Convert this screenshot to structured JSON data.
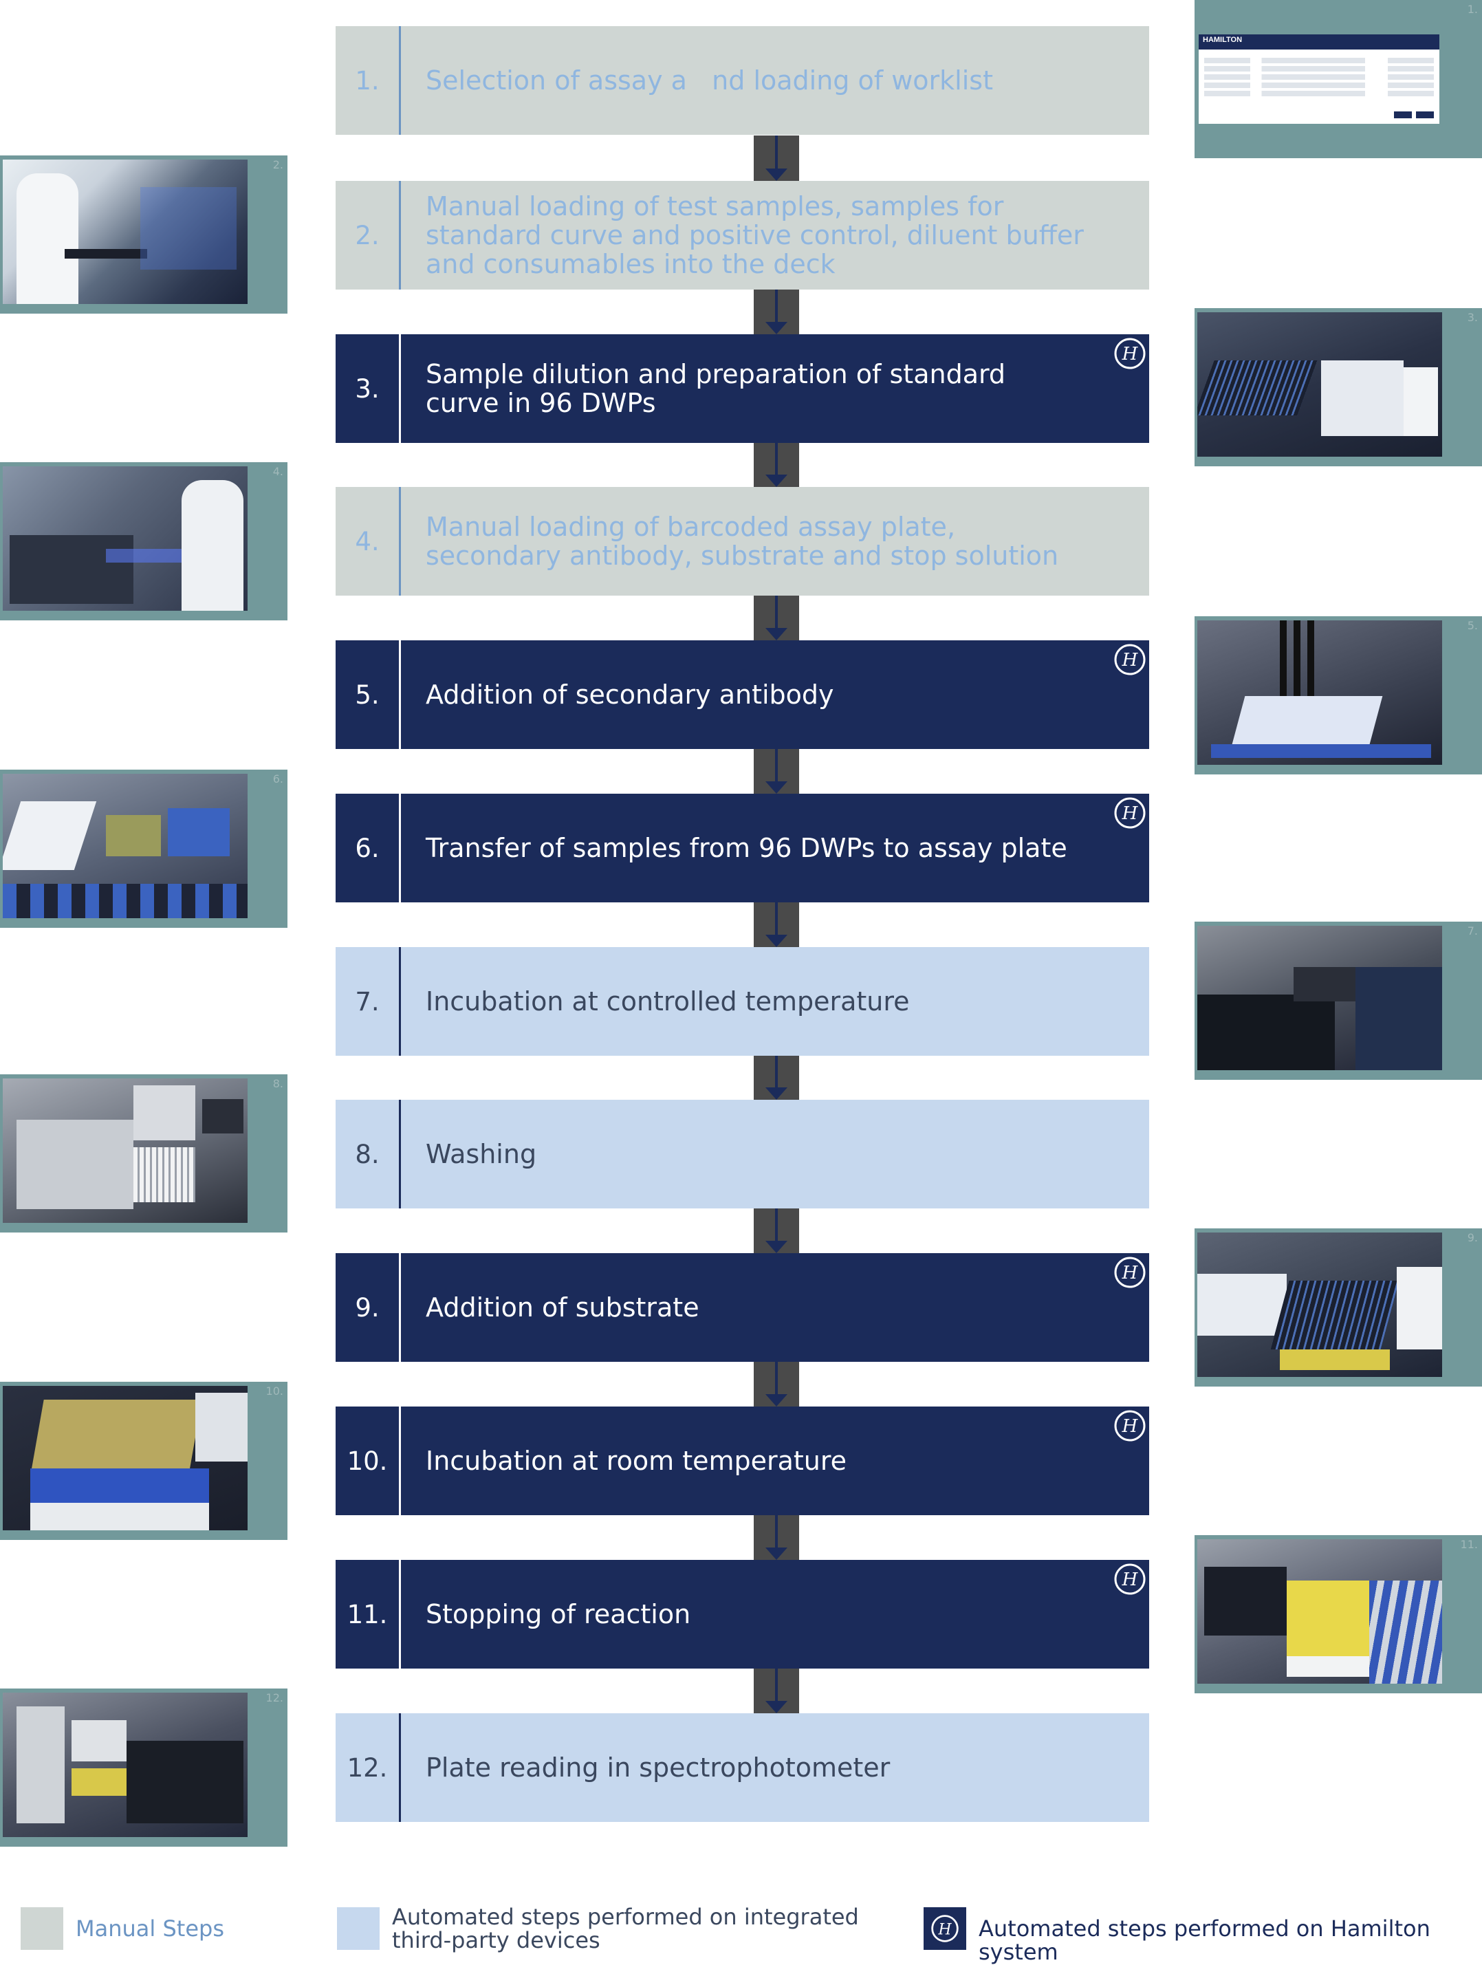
{
  "steps": [
    {
      "num": "1.",
      "text": "Selection of assay a   nd loading of worklist",
      "type": "manual"
    },
    {
      "num": "2.",
      "text": "Manual loading of test samples, samples for standard curve and positive control, diluent buffer and consumables into the deck",
      "type": "manual"
    },
    {
      "num": "3.",
      "text": "Sample dilution and preparation of standard curve in 96 DWPs",
      "type": "hamilton"
    },
    {
      "num": "4.",
      "text": "Manual loading of barcoded assay plate, secondary antibody, substrate and stop solution",
      "type": "manual"
    },
    {
      "num": "5.",
      "text": "Addition of secondary antibody",
      "type": "hamilton"
    },
    {
      "num": "6.",
      "text": "Transfer of samples from 96 DWPs to assay plate",
      "type": "hamilton"
    },
    {
      "num": "7.",
      "text": "Incubation at controlled temperature",
      "type": "thirdparty"
    },
    {
      "num": "8.",
      "text": "Washing",
      "type": "thirdparty"
    },
    {
      "num": "9.",
      "text": "Addition of substrate",
      "type": "hamilton"
    },
    {
      "num": "10.",
      "text": "Incubation at room temperature",
      "type": "hamilton"
    },
    {
      "num": "11.",
      "text": "Stopping of reaction",
      "type": "hamilton"
    },
    {
      "num": "12.",
      "text": "Plate reading in spectrophotometer",
      "type": "thirdparty"
    }
  ],
  "photos": [
    {
      "label": "1.",
      "side": "right"
    },
    {
      "label": "2.",
      "side": "left"
    },
    {
      "label": "3.",
      "side": "right"
    },
    {
      "label": "4.",
      "side": "left"
    },
    {
      "label": "5.",
      "side": "right"
    },
    {
      "label": "6.",
      "side": "left"
    },
    {
      "label": "7.",
      "side": "right"
    },
    {
      "label": "8.",
      "side": "left"
    },
    {
      "label": "9.",
      "side": "right"
    },
    {
      "label": "10.",
      "side": "left"
    },
    {
      "label": "11.",
      "side": "right"
    },
    {
      "label": "12.",
      "side": "left"
    }
  ],
  "screenshot_logo": "HAMILTON",
  "legend": {
    "manual": "Manual Steps",
    "thirdparty": "Automated steps performed on integrated third-party devices",
    "hamilton": "Automated steps performed on Hamilton system"
  },
  "colors": {
    "manual": "#cfd6d3",
    "thirdparty": "#c6d8ee",
    "hamilton": "#1b2b5a",
    "frame": "#72999b",
    "connector": "#4a4a4a"
  },
  "icons": {
    "hamilton": "hamilton-h-icon",
    "arrow": "arrow-down-icon"
  }
}
